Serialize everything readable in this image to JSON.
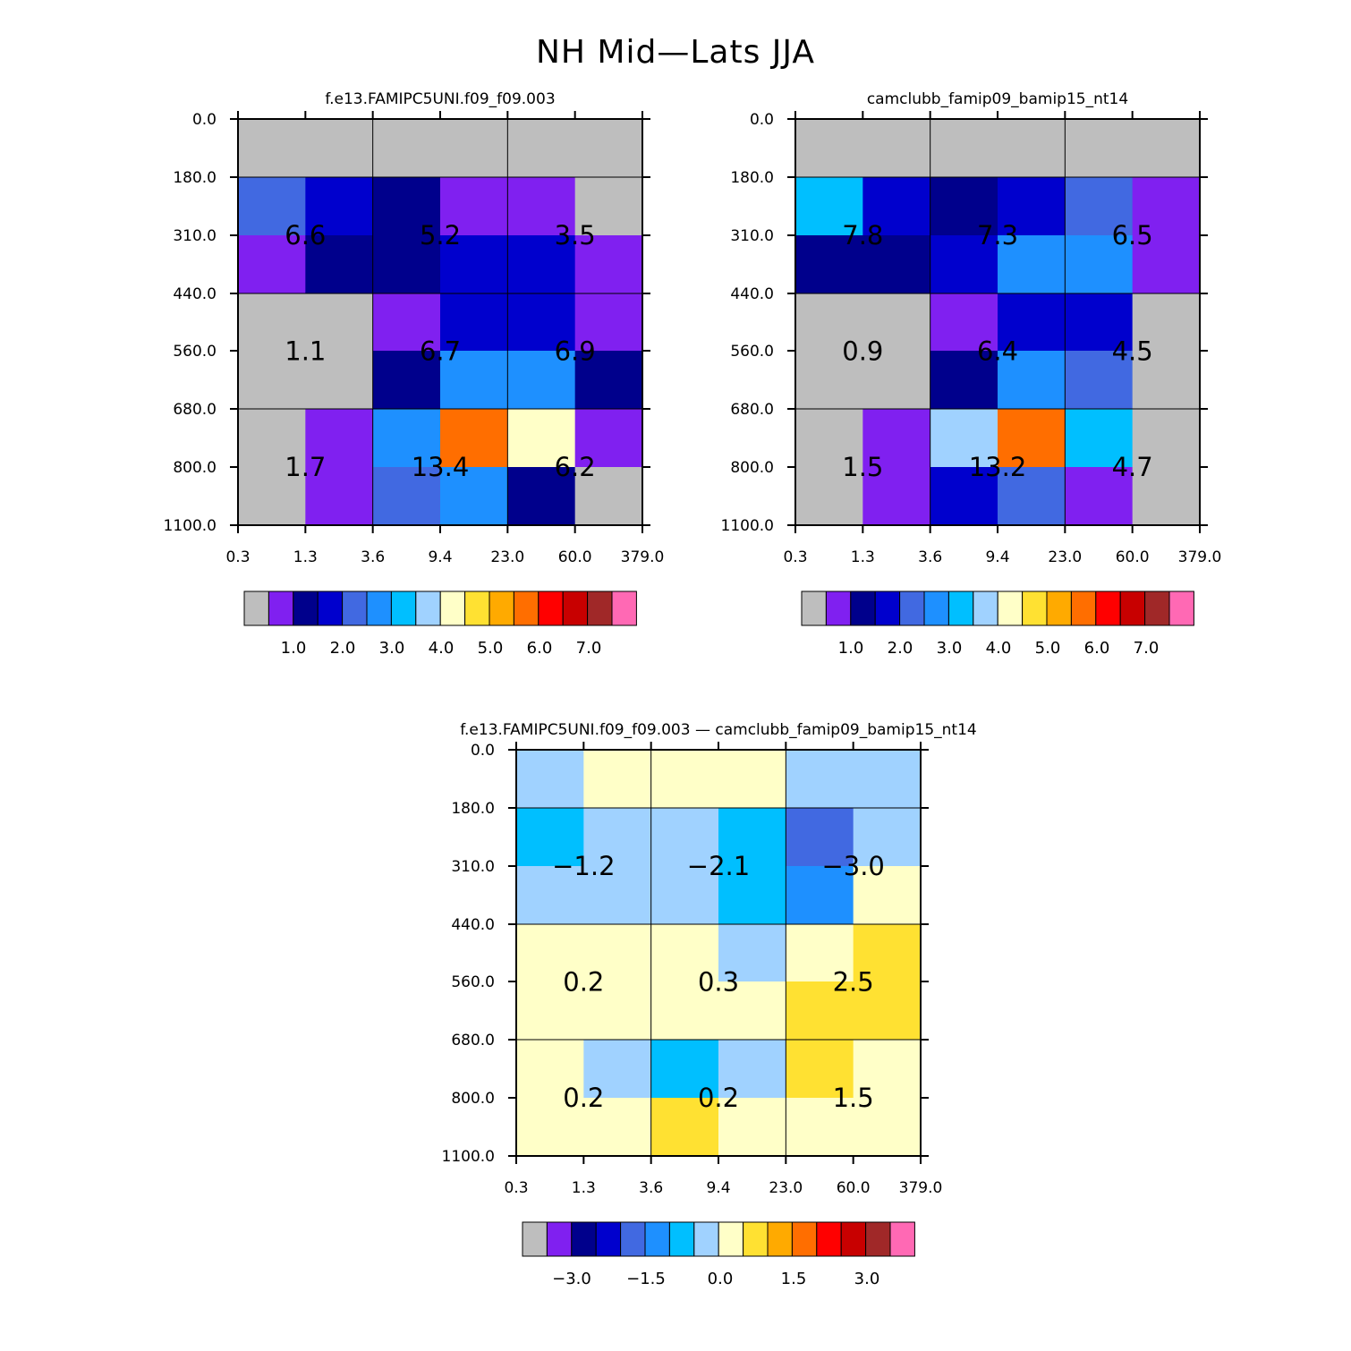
{
  "title": "NH Mid—Lats JJA",
  "x_tick_labels": [
    "0.3",
    "1.3",
    "3.6",
    "9.4",
    "23.0",
    "60.0",
    "379.0"
  ],
  "y_tick_labels": [
    "0.0",
    "180.0",
    "310.0",
    "440.0",
    "560.0",
    "680.0",
    "800.0",
    "1100.0"
  ],
  "colors": {
    "palette": [
      "#bebebe",
      "#8020f0",
      "#00008c",
      "#0000cd",
      "#4169e1",
      "#1e90ff",
      "#00bfff",
      "#a0d2ff",
      "#ffffc8",
      "#ffe132",
      "#ffaa00",
      "#ff6e00",
      "#ff0000",
      "#c80000",
      "#a02828",
      "#ff69b4"
    ]
  },
  "chart_data": [
    {
      "type": "heatmap",
      "title": "f.e13.FAMIPC5UNI.f09_f09.003",
      "xlabel": "",
      "ylabel": "",
      "x_bins": [
        "0.3",
        "1.3",
        "3.6",
        "9.4",
        "23.0",
        "60.0",
        "379.0"
      ],
      "y_bins": [
        "0.0",
        "180.0",
        "310.0",
        "440.0",
        "560.0",
        "680.0",
        "800.0",
        "1100.0"
      ],
      "cells": [
        [
          0,
          0,
          0,
          0,
          0,
          0
        ],
        [
          4,
          3,
          2,
          1,
          1,
          0
        ],
        [
          1,
          2,
          2,
          3,
          3,
          1
        ],
        [
          0,
          0,
          1,
          3,
          3,
          1
        ],
        [
          0,
          0,
          2,
          5,
          5,
          2
        ],
        [
          0,
          1,
          5,
          11,
          8,
          1
        ],
        [
          0,
          1,
          4,
          5,
          2,
          0
        ]
      ],
      "block_values": [
        [
          "",
          "",
          ""
        ],
        [
          "6.6",
          "5.2",
          "3.5"
        ],
        [
          "1.1",
          "6.7",
          "6.9"
        ],
        [
          "1.7",
          "13.4",
          "6.2"
        ]
      ],
      "colorbar": {
        "ticks": [
          "1.0",
          "2.0",
          "3.0",
          "4.0",
          "5.0",
          "6.0",
          "7.0"
        ]
      }
    },
    {
      "type": "heatmap",
      "title": "camclubb_famip09_bamip15_nt14",
      "xlabel": "",
      "ylabel": "",
      "x_bins": [
        "0.3",
        "1.3",
        "3.6",
        "9.4",
        "23.0",
        "60.0",
        "379.0"
      ],
      "y_bins": [
        "0.0",
        "180.0",
        "310.0",
        "440.0",
        "560.0",
        "680.0",
        "800.0",
        "1100.0"
      ],
      "cells": [
        [
          0,
          0,
          0,
          0,
          0,
          0
        ],
        [
          6,
          3,
          2,
          3,
          4,
          1
        ],
        [
          2,
          2,
          3,
          5,
          5,
          1
        ],
        [
          0,
          0,
          1,
          3,
          3,
          0
        ],
        [
          0,
          0,
          2,
          5,
          4,
          0
        ],
        [
          0,
          1,
          7,
          11,
          6,
          0
        ],
        [
          0,
          1,
          3,
          4,
          1,
          0
        ]
      ],
      "block_values": [
        [
          "",
          "",
          ""
        ],
        [
          "7.8",
          "7.3",
          "6.5"
        ],
        [
          "0.9",
          "6.4",
          "4.5"
        ],
        [
          "1.5",
          "13.2",
          "4.7"
        ]
      ],
      "colorbar": {
        "ticks": [
          "1.0",
          "2.0",
          "3.0",
          "4.0",
          "5.0",
          "6.0",
          "7.0"
        ]
      }
    },
    {
      "type": "heatmap",
      "title": "f.e13.FAMIPC5UNI.f09_f09.003 — camclubb_famip09_bamip15_nt14",
      "xlabel": "",
      "ylabel": "",
      "x_bins": [
        "0.3",
        "1.3",
        "3.6",
        "9.4",
        "23.0",
        "60.0",
        "379.0"
      ],
      "y_bins": [
        "0.0",
        "180.0",
        "310.0",
        "440.0",
        "560.0",
        "680.0",
        "800.0",
        "1100.0"
      ],
      "cells": [
        [
          7,
          8,
          8,
          8,
          7,
          7
        ],
        [
          6,
          7,
          7,
          6,
          4,
          7
        ],
        [
          7,
          7,
          7,
          6,
          5,
          8
        ],
        [
          8,
          8,
          8,
          7,
          8,
          9
        ],
        [
          8,
          8,
          8,
          8,
          9,
          9
        ],
        [
          8,
          7,
          6,
          7,
          9,
          8
        ],
        [
          8,
          8,
          9,
          8,
          8,
          8
        ]
      ],
      "block_values": [
        [
          "",
          "",
          ""
        ],
        [
          "−1.2",
          "−2.1",
          "−3.0"
        ],
        [
          "0.2",
          "0.3",
          "2.5"
        ],
        [
          "0.2",
          "0.2",
          "1.5"
        ]
      ],
      "colorbar": {
        "ticks": [
          "−3.0",
          "−1.5",
          "0.0",
          "1.5",
          "3.0"
        ]
      }
    }
  ]
}
